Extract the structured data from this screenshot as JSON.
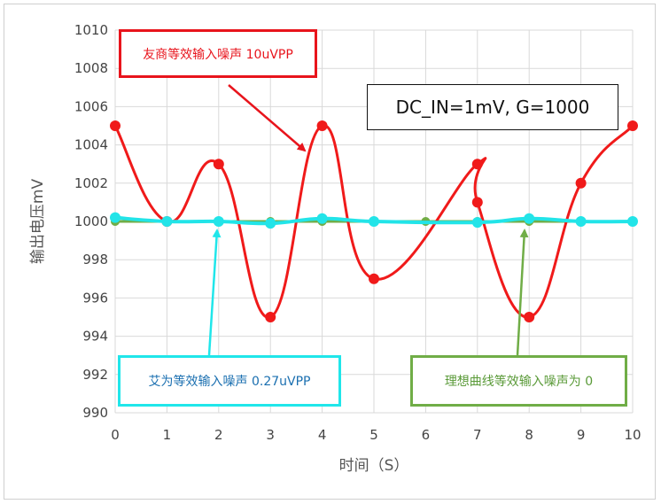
{
  "chart_data": {
    "type": "line",
    "xlabel": "时间（S）",
    "ylabel": "输出电压mV",
    "xlim": [
      0,
      10
    ],
    "ylim": [
      990,
      1010
    ],
    "x_ticks": [
      "0",
      "1",
      "2",
      "3",
      "4",
      "5",
      "6",
      "7",
      "8",
      "9",
      "10"
    ],
    "y_ticks": [
      "990",
      "992",
      "994",
      "996",
      "998",
      "1000",
      "1002",
      "1004",
      "1006",
      "1008",
      "1010"
    ],
    "grid": true,
    "series": [
      {
        "name": "友商等效输入噪声 10uVPP",
        "color": "#f01a1a",
        "x": [
          0,
          1,
          2,
          3,
          4,
          5,
          7,
          7,
          8,
          9,
          10
        ],
        "y": [
          1005,
          1000,
          1003,
          995,
          1005,
          997,
          1003,
          1001,
          995,
          1002,
          1005
        ]
      },
      {
        "name": "艾为等效输入噪声 0.27uVPP",
        "color": "#22e4e8",
        "x": [
          0,
          1,
          2,
          3,
          4,
          5,
          7,
          8,
          9,
          10
        ],
        "y": [
          1000.2,
          1000,
          1000,
          999.9,
          1000.15,
          1000,
          999.95,
          1000.15,
          1000,
          1000
        ]
      },
      {
        "name": "理想曲线等效输入噪声为 0",
        "color": "#70ad47",
        "x": [
          0,
          1,
          2,
          3,
          4,
          5,
          6,
          7,
          8,
          9,
          10
        ],
        "y": [
          1000,
          1000,
          1000,
          1000,
          1000,
          1000,
          1000,
          1000,
          1000,
          1000,
          1000
        ]
      }
    ],
    "annotations": [
      {
        "text": "友商等效输入噪声 10uVPP",
        "color": "#e8141c"
      },
      {
        "text": "DC_IN=1mV, G=1000",
        "color": "#111111"
      },
      {
        "text": "艾为等效输入噪声 0.27uVPP",
        "color": "#1a6fb0"
      },
      {
        "text": "理想曲线等效输入噪声为 0",
        "color": "#5a9a38"
      }
    ]
  }
}
